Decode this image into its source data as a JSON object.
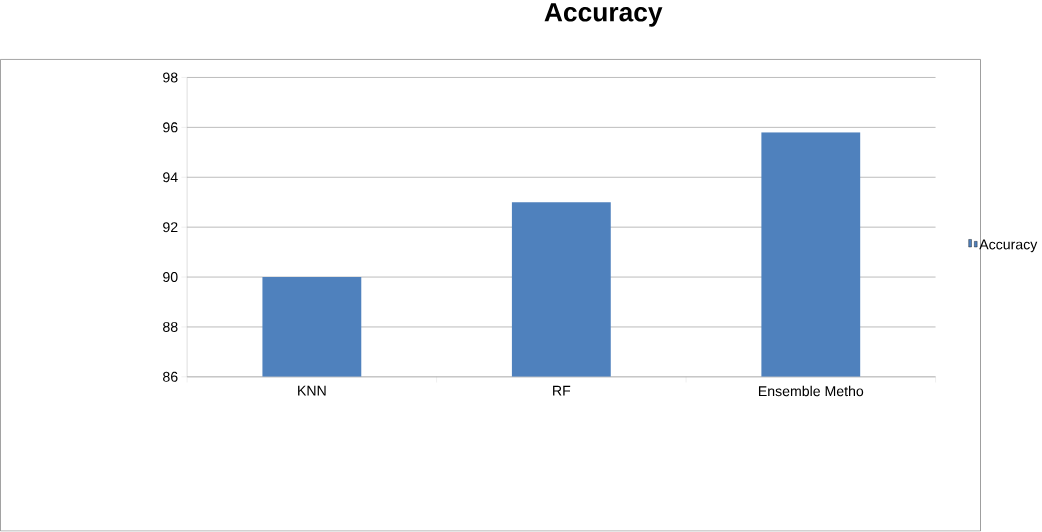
{
  "chart_data": {
    "type": "bar",
    "title": "Accuracy",
    "categories": [
      "KNN",
      "RF",
      "Ensemble Metho"
    ],
    "series": [
      {
        "name": "Accuracy",
        "color": "#4f81bd",
        "values": [
          90,
          93,
          95.8
        ]
      }
    ],
    "ylim": [
      86,
      98
    ],
    "yticks": [
      86,
      88,
      90,
      92,
      94,
      96,
      98
    ],
    "grid": "y",
    "legend": "right"
  }
}
